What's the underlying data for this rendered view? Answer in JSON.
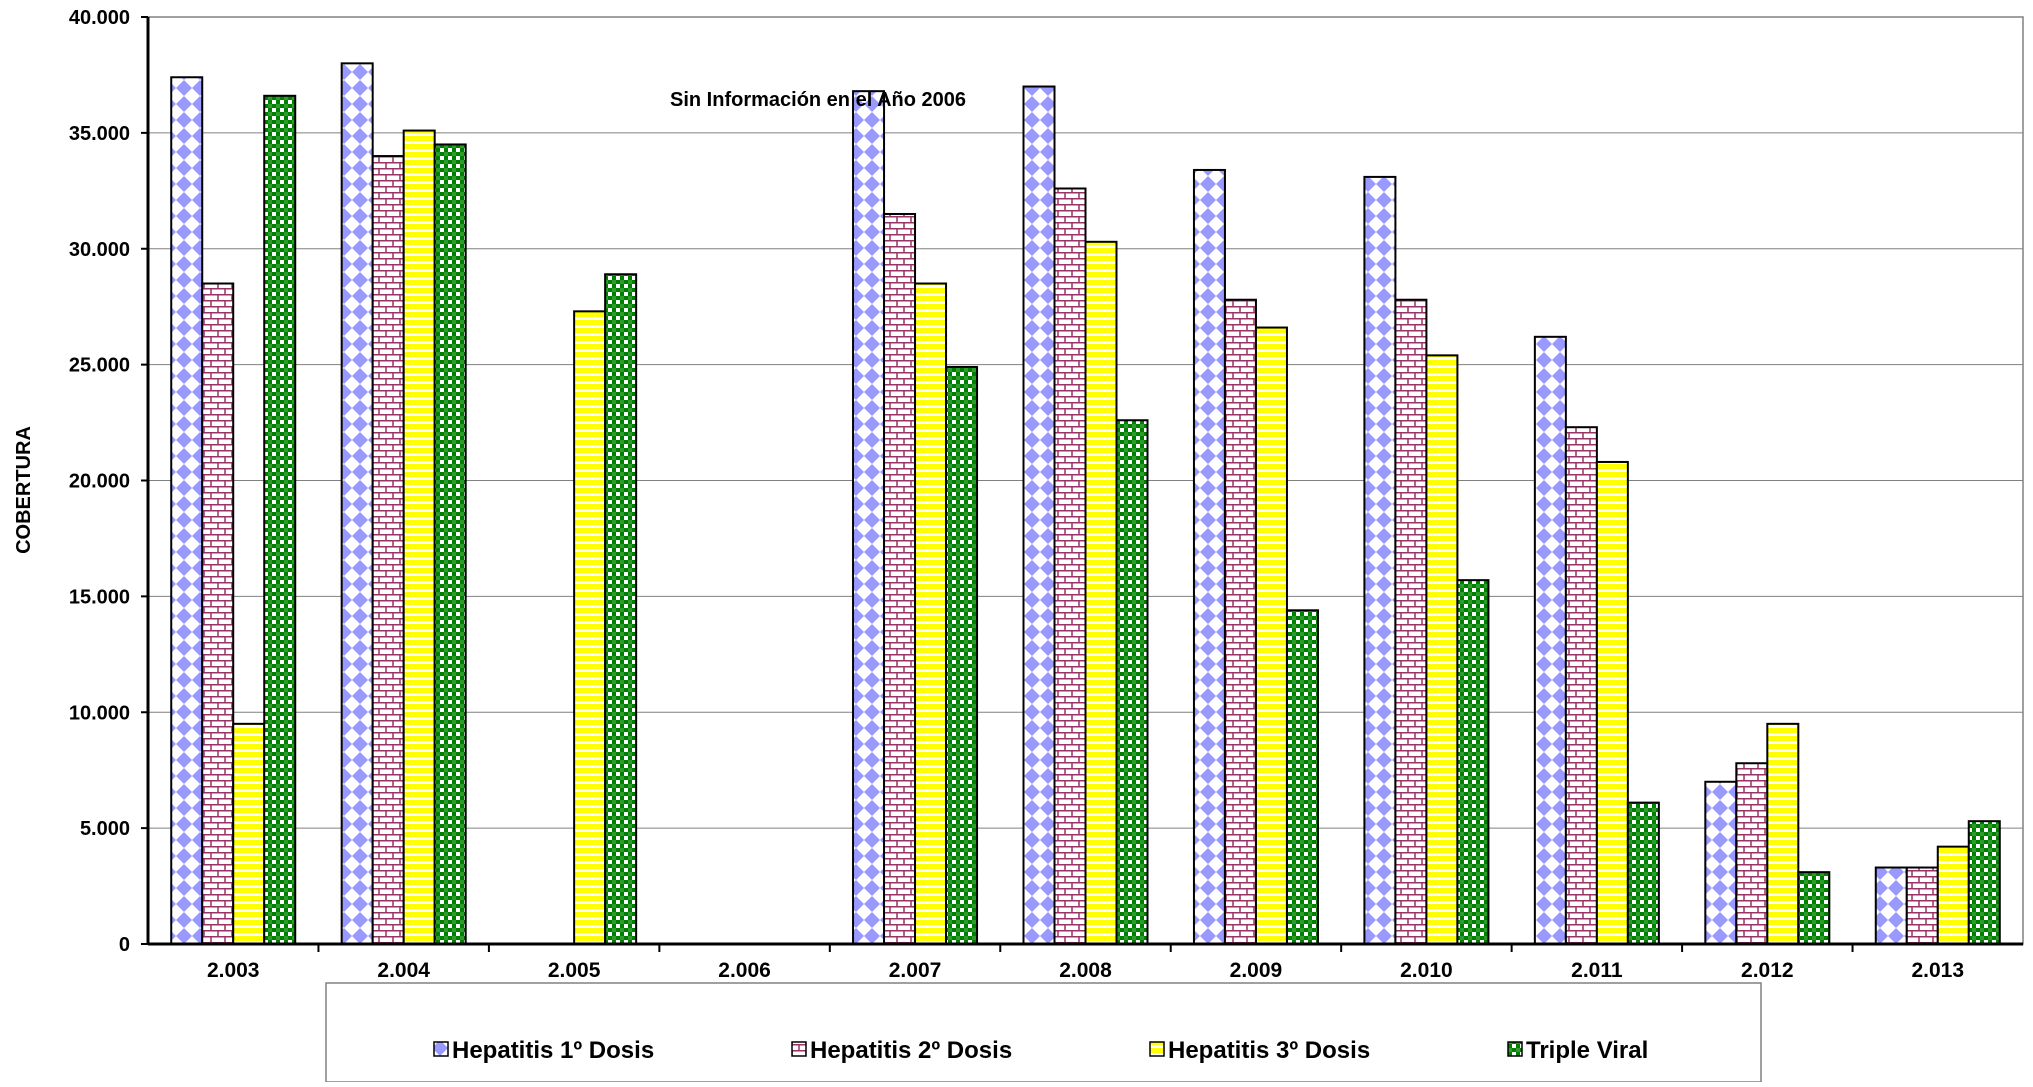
{
  "chart_data": {
    "type": "bar",
    "title": "",
    "xlabel": "",
    "ylabel": "COBERTURA",
    "ylim": [
      0,
      40000
    ],
    "yticks": [
      0,
      5000,
      10000,
      15000,
      20000,
      25000,
      30000,
      35000,
      40000
    ],
    "ytick_labels": [
      "0",
      "5.000",
      "10.000",
      "15.000",
      "20.000",
      "25.000",
      "30.000",
      "35.000",
      "40.000"
    ],
    "grid": "horizontal",
    "legend_position": "bottom",
    "categories": [
      "2.003",
      "2.004",
      "2.005",
      "2.006",
      "2.007",
      "2.008",
      "2.009",
      "2.010",
      "2.011",
      "2.012",
      "2.013"
    ],
    "series": [
      {
        "name": "Hepatitis 1º Dosis",
        "color": "#9999ff",
        "pattern": "diamond",
        "values": [
          37400,
          38000,
          0,
          0,
          36800,
          37000,
          33400,
          33100,
          26200,
          7000,
          3300
        ]
      },
      {
        "name": "Hepatitis 2º Dosis",
        "color": "#993366",
        "pattern": "brick",
        "values": [
          28500,
          34000,
          0,
          0,
          31500,
          32600,
          27800,
          27800,
          22300,
          7800,
          3300
        ]
      },
      {
        "name": "Hepatitis 3º Dosis",
        "color": "#ffff00",
        "pattern": "hstripe",
        "values": [
          9500,
          35100,
          27300,
          0,
          28500,
          30300,
          26600,
          25400,
          20800,
          9500,
          4200
        ]
      },
      {
        "name": "Triple Viral",
        "color": "#008000",
        "pattern": "check",
        "values": [
          36600,
          34500,
          28900,
          0,
          24900,
          22600,
          14400,
          15700,
          6100,
          3100,
          5300
        ]
      }
    ],
    "annotations": [
      {
        "text": "Sin Información en el Año 2006"
      }
    ]
  }
}
